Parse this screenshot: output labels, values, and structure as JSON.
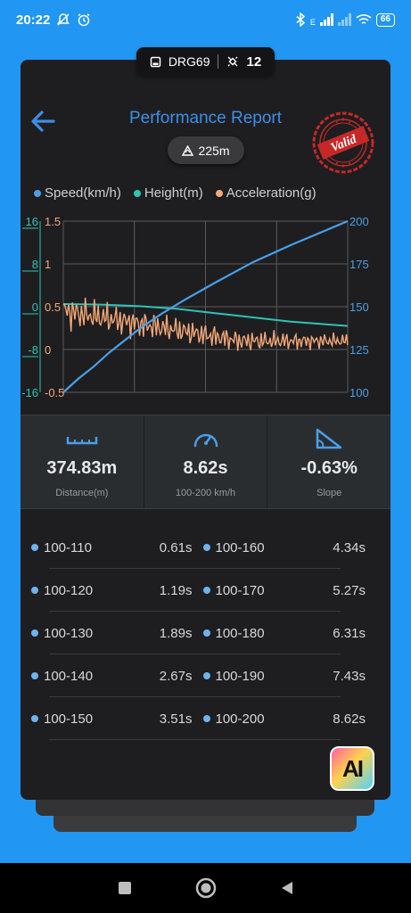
{
  "status_bar": {
    "time": "20:22",
    "net_label": "E",
    "battery": "66"
  },
  "device": {
    "name": "DRG69",
    "count": "12"
  },
  "header": {
    "title": "Performance Report",
    "distance_badge": "225m",
    "stamp_text": "Valid"
  },
  "legend": [
    {
      "label": "Speed(km/h)",
      "color": "#4a9fe8"
    },
    {
      "label": "Height(m)",
      "color": "#2ec4b6"
    },
    {
      "label": "Acceleration(g)",
      "color": "#f4a878"
    }
  ],
  "chart_data": {
    "type": "line",
    "x_range": [
      0,
      375
    ],
    "axes": {
      "height": {
        "ticks": [
          "16",
          "8",
          "0",
          "-8",
          "-16"
        ],
        "range": [
          -16,
          16
        ],
        "color": "#2ec4b6"
      },
      "acceleration": {
        "ticks": [
          "1.5",
          "1",
          "0.5",
          "0",
          "-0.5"
        ],
        "range": [
          -0.5,
          1.5
        ],
        "color": "#f4a878"
      },
      "speed": {
        "ticks": [
          "200",
          "175",
          "150",
          "125",
          "100"
        ],
        "range": [
          100,
          200
        ],
        "color": "#4a9fe8"
      }
    },
    "series": [
      {
        "name": "Speed(km/h)",
        "x": [
          0,
          20,
          40,
          60,
          80,
          100,
          130,
          160,
          200,
          250,
          300,
          375
        ],
        "values": [
          100,
          108,
          115,
          123,
          130,
          137,
          146,
          154,
          164,
          176,
          186,
          200
        ]
      },
      {
        "name": "Height(m)",
        "x": [
          0,
          50,
          100,
          150,
          200,
          250,
          300,
          375
        ],
        "values": [
          0.5,
          0.4,
          0.1,
          -0.4,
          -1.2,
          -2.0,
          -2.8,
          -3.6
        ]
      },
      {
        "name": "Acceleration(g)",
        "x": [
          0,
          375
        ],
        "values": [
          0.45,
          0.1
        ]
      }
    ],
    "grid": true
  },
  "stats": [
    {
      "icon": "ruler-icon",
      "value": "374.83m",
      "label": "Distance(m)"
    },
    {
      "icon": "speedometer-icon",
      "value": "8.62s",
      "label": "100-200 km/h"
    },
    {
      "icon": "slope-icon",
      "value": "-0.63%",
      "label": "Slope"
    }
  ],
  "splits": [
    [
      {
        "name": "100-110",
        "time": "0.61s"
      },
      {
        "name": "100-160",
        "time": "4.34s"
      }
    ],
    [
      {
        "name": "100-120",
        "time": "1.19s"
      },
      {
        "name": "100-170",
        "time": "5.27s"
      }
    ],
    [
      {
        "name": "100-130",
        "time": "1.89s"
      },
      {
        "name": "100-180",
        "time": "6.31s"
      }
    ],
    [
      {
        "name": "100-140",
        "time": "2.67s"
      },
      {
        "name": "100-190",
        "time": "7.43s"
      }
    ],
    [
      {
        "name": "100-150",
        "time": "3.51s"
      },
      {
        "name": "100-200",
        "time": "8.62s"
      }
    ]
  ],
  "ai_button": {
    "label": "AI"
  }
}
